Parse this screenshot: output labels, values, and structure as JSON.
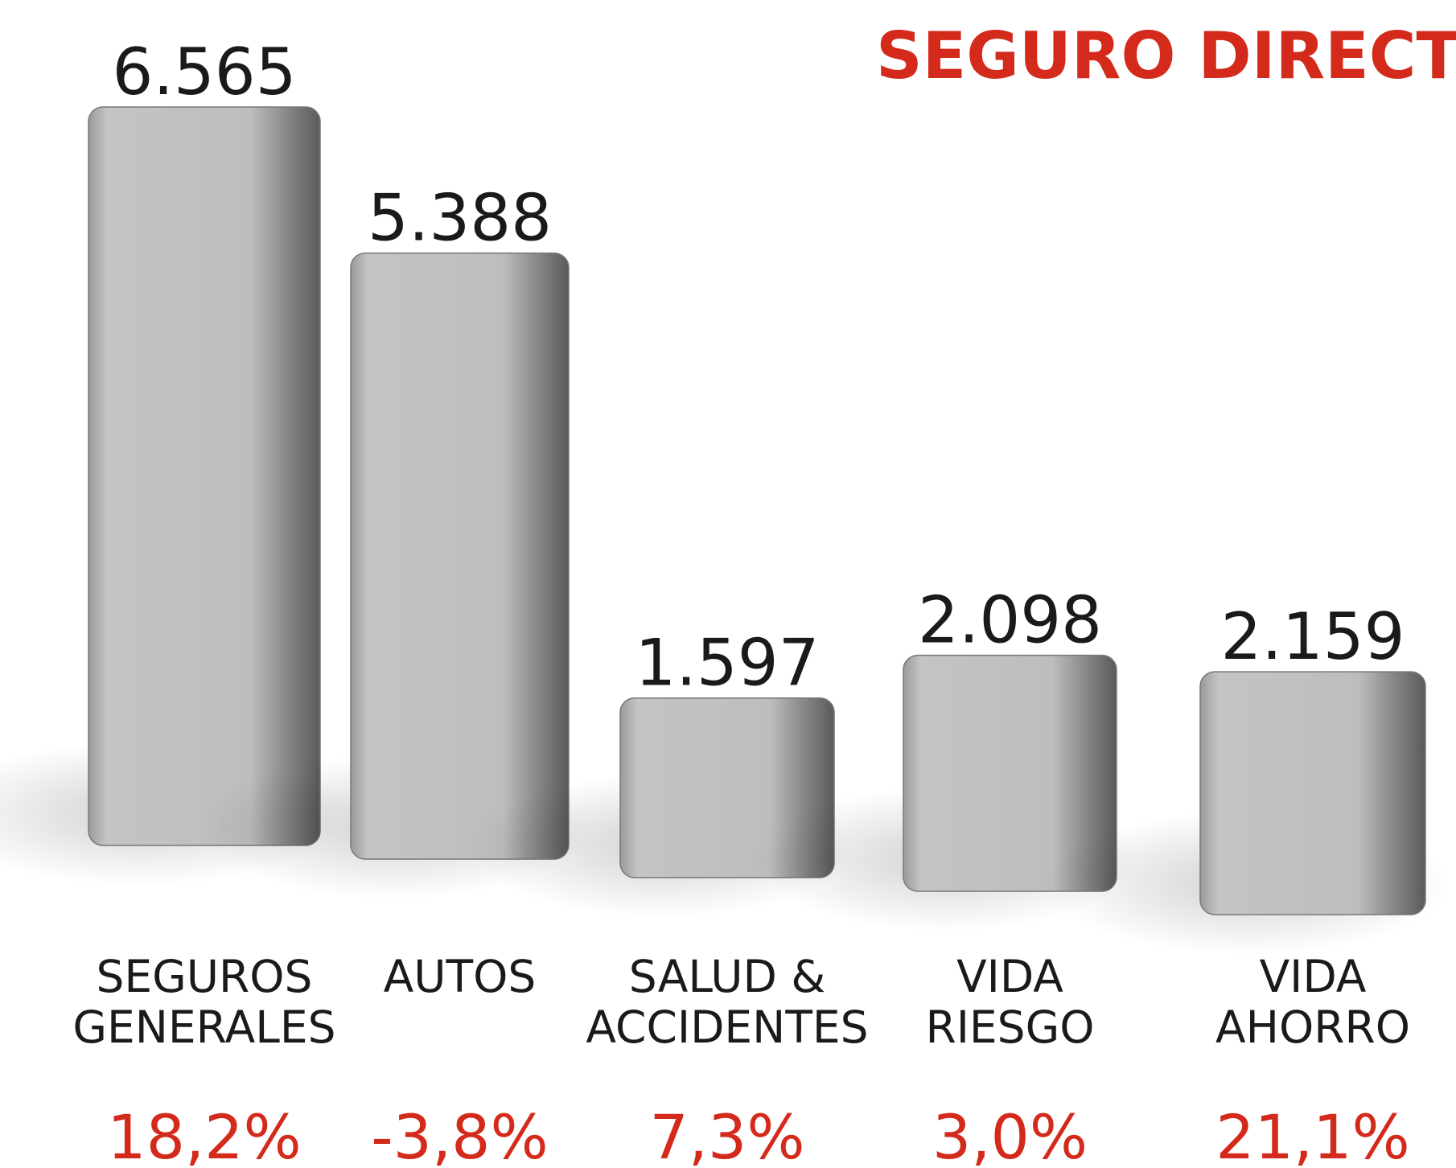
{
  "chart_data": {
    "type": "bar",
    "title": "SEGURO DIRECTO",
    "categories": [
      [
        "SEGUROS",
        "GENERALES"
      ],
      [
        "AUTOS"
      ],
      [
        "SALUD &",
        "ACCIDENTES"
      ],
      [
        "VIDA",
        "RIESGO"
      ],
      [
        "VIDA",
        "AHORRO"
      ]
    ],
    "values": [
      6565,
      5388,
      1597,
      2098,
      2159
    ],
    "value_labels": [
      "6.565",
      "5.388",
      "1.597",
      "2.098",
      "2.159"
    ],
    "changes": [
      18.2,
      -3.8,
      7.3,
      3.0,
      21.1
    ],
    "change_labels": [
      "18,2%",
      "-3,8%",
      "7,3%",
      "3,0%",
      "21,1%"
    ],
    "color": "#b5b5b5",
    "change_color": "#d42a1c",
    "title_color": "#d42a1c"
  }
}
